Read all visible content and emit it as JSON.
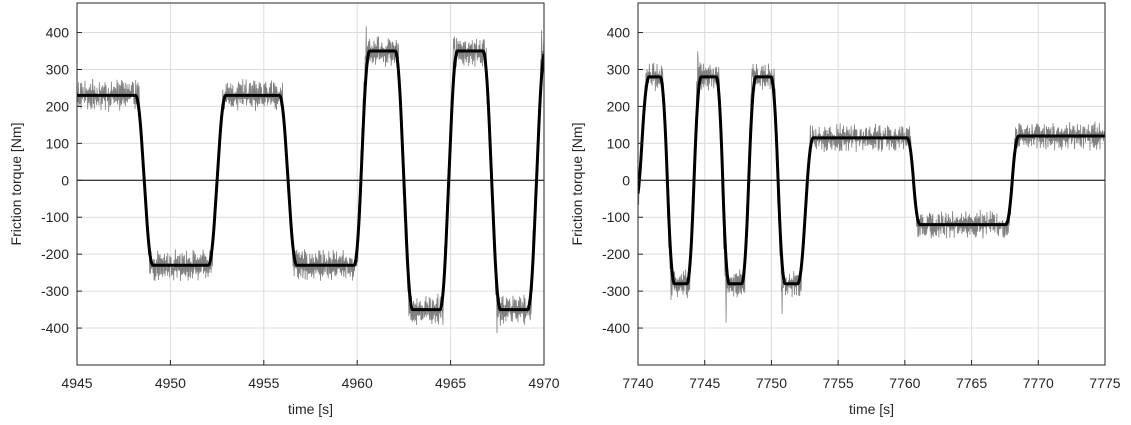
{
  "chart_data": [
    {
      "type": "line",
      "title": "",
      "xlabel": "time [s]",
      "ylabel": "Friction torque [Nm]",
      "xlim": [
        4945,
        4970
      ],
      "ylim": [
        -500,
        480
      ],
      "xticks": [
        4945,
        4950,
        4955,
        4960,
        4965,
        4970
      ],
      "xtick_labels": [
        "4945",
        "4950",
        "4955",
        "4960",
        "4965",
        "4970"
      ],
      "yticks": [
        -400,
        -300,
        -200,
        -100,
        0,
        100,
        200,
        300,
        400
      ],
      "ytick_labels": [
        "-400",
        "-300",
        "-200",
        "-100",
        "0",
        "100",
        "200",
        "300",
        "400"
      ],
      "grid": true,
      "zero_line": true,
      "series": [
        {
          "role": "measured",
          "color": "#808080",
          "noise_amplitude": 45,
          "x": [
            4945.0,
            4948.3,
            4948.9,
            4952.2,
            4952.8,
            4956.0,
            4956.6,
            4960.0,
            4960.5,
            4962.2,
            4962.8,
            4964.6,
            4965.2,
            4966.9,
            4967.5,
            4969.3,
            4969.9,
            4970.0
          ],
          "y": [
            230,
            230,
            -230,
            -230,
            230,
            230,
            -230,
            -230,
            350,
            350,
            -350,
            -350,
            350,
            350,
            -350,
            -350,
            350,
            350
          ]
        },
        {
          "role": "model",
          "color": "#000000",
          "x": [
            4945.0,
            4948.3,
            4948.9,
            4952.2,
            4952.8,
            4956.0,
            4956.6,
            4960.0,
            4960.5,
            4962.2,
            4962.8,
            4964.6,
            4965.2,
            4966.9,
            4967.5,
            4969.3,
            4969.9,
            4970.0
          ],
          "y": [
            230,
            230,
            -230,
            -230,
            230,
            230,
            -230,
            -230,
            350,
            350,
            -350,
            -350,
            350,
            350,
            -350,
            -350,
            350,
            350
          ]
        }
      ]
    },
    {
      "type": "line",
      "title": "",
      "xlabel": "time [s]",
      "ylabel": "Friction torque [Nm]",
      "xlim": [
        7740,
        7775
      ],
      "ylim": [
        -500,
        480
      ],
      "xticks": [
        7740,
        7745,
        7750,
        7755,
        7760,
        7765,
        7770,
        7775
      ],
      "xtick_labels": [
        "7740",
        "7745",
        "7750",
        "7755",
        "7760",
        "7765",
        "7770",
        "7775"
      ],
      "yticks": [
        -400,
        -300,
        -200,
        -100,
        0,
        100,
        200,
        300,
        400
      ],
      "ytick_labels": [
        "-400",
        "-300",
        "-200",
        "-100",
        "0",
        "100",
        "200",
        "300",
        "400"
      ],
      "grid": true,
      "zero_line": true,
      "series": [
        {
          "role": "measured",
          "color": "#808080",
          "noise_amplitude": 40,
          "x": [
            7740.0,
            7740.6,
            7741.9,
            7742.5,
            7743.9,
            7744.5,
            7746.1,
            7746.6,
            7748.0,
            7748.6,
            7750.2,
            7750.8,
            7752.2,
            7752.9,
            7760.4,
            7760.9,
            7767.8,
            7768.3,
            7775.0
          ],
          "y": [
            -70,
            280,
            280,
            -280,
            -280,
            280,
            280,
            -280,
            -280,
            280,
            280,
            -280,
            -280,
            115,
            115,
            -120,
            -120,
            120,
            120
          ]
        },
        {
          "role": "model",
          "color": "#000000",
          "x": [
            7740.0,
            7740.6,
            7741.9,
            7742.5,
            7743.9,
            7744.5,
            7746.1,
            7746.6,
            7748.0,
            7748.6,
            7750.2,
            7750.8,
            7752.2,
            7752.9,
            7760.4,
            7760.9,
            7767.8,
            7768.3,
            7775.0
          ],
          "y": [
            -70,
            280,
            280,
            -280,
            -280,
            280,
            280,
            -280,
            -280,
            280,
            280,
            -280,
            -280,
            115,
            115,
            -120,
            -120,
            120,
            120
          ]
        }
      ]
    }
  ]
}
